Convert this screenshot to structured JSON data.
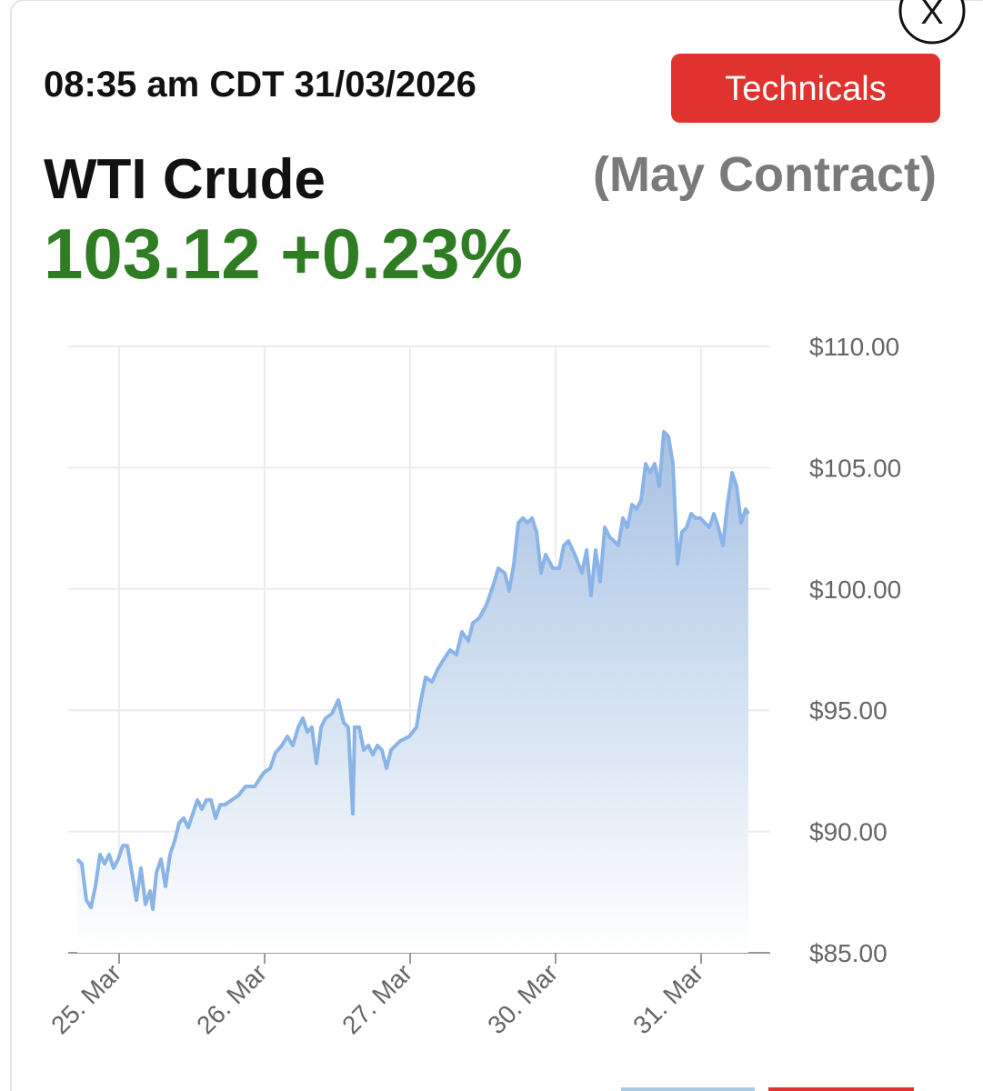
{
  "close": "X",
  "timestamp": "08:35 am CDT 31/03/2026",
  "button": "Technicals",
  "instrument": "WTI Crude",
  "contract": "(May Contract)",
  "quote": "103.12 +0.23%",
  "chart_data": {
    "type": "line",
    "x": [
      -0.288,
      -0.256,
      -0.225,
      -0.194,
      -0.163,
      -0.131,
      -0.1,
      -0.069,
      -0.038,
      -0.006,
      0.025,
      0.056,
      0.088,
      0.119,
      0.15,
      0.181,
      0.213,
      0.231,
      0.256,
      0.288,
      0.319,
      0.35,
      0.381,
      0.413,
      0.444,
      0.475,
      0.506,
      0.538,
      0.569,
      0.6,
      0.631,
      0.663,
      0.694,
      0.725,
      0.775,
      0.819,
      0.869,
      0.931,
      0.994,
      1.038,
      1.075,
      1.119,
      1.156,
      1.194,
      1.231,
      1.263,
      1.294,
      1.325,
      1.356,
      1.388,
      1.419,
      1.463,
      1.506,
      1.544,
      1.575,
      1.606,
      1.619,
      1.65,
      1.681,
      1.713,
      1.744,
      1.775,
      1.806,
      1.838,
      1.869,
      1.931,
      1.994,
      2.044,
      2.069,
      2.106,
      2.15,
      2.194,
      2.231,
      2.275,
      2.319,
      2.356,
      2.4,
      2.431,
      2.475,
      2.525,
      2.569,
      2.606,
      2.65,
      2.681,
      2.713,
      2.744,
      2.775,
      2.806,
      2.838,
      2.869,
      2.9,
      2.931,
      2.981,
      3.025,
      3.056,
      3.088,
      3.131,
      3.181,
      3.213,
      3.244,
      3.275,
      3.306,
      3.338,
      3.369,
      3.4,
      3.431,
      3.463,
      3.494,
      3.525,
      3.556,
      3.588,
      3.619,
      3.65,
      3.681,
      3.713,
      3.744,
      3.775,
      3.806,
      3.838,
      3.869,
      3.9,
      3.931,
      3.963,
      3.994,
      4.025,
      4.056,
      4.088,
      4.119,
      4.15,
      4.181,
      4.213,
      4.244,
      4.275,
      4.306,
      4.325
    ],
    "series": [
      {
        "color": "#8ab4e8",
        "values": [
          88.86,
          88.67,
          87.17,
          86.87,
          87.74,
          89.05,
          88.67,
          89.05,
          88.49,
          88.86,
          89.42,
          89.42,
          88.3,
          87.17,
          88.49,
          87.0,
          87.55,
          86.8,
          88.3,
          88.86,
          87.74,
          89.05,
          89.61,
          90.36,
          90.55,
          90.17,
          90.73,
          91.3,
          90.92,
          91.3,
          91.3,
          90.55,
          91.1,
          91.1,
          91.3,
          91.48,
          91.86,
          91.86,
          92.42,
          92.61,
          93.25,
          93.55,
          93.92,
          93.55,
          94.3,
          94.67,
          94.1,
          94.3,
          92.8,
          94.3,
          94.67,
          94.86,
          95.42,
          94.48,
          94.3,
          90.73,
          94.3,
          94.3,
          93.36,
          93.55,
          93.17,
          93.55,
          93.36,
          92.61,
          93.36,
          93.73,
          93.92,
          94.3,
          95.23,
          96.36,
          96.17,
          96.73,
          97.1,
          97.48,
          97.29,
          98.23,
          97.86,
          98.6,
          98.8,
          99.35,
          100.1,
          100.85,
          100.66,
          99.92,
          101.04,
          102.73,
          102.92,
          102.73,
          102.92,
          102.35,
          100.66,
          101.42,
          100.85,
          100.85,
          101.79,
          101.98,
          101.42,
          100.66,
          101.6,
          99.73,
          101.6,
          100.3,
          102.54,
          102.16,
          101.98,
          101.79,
          102.92,
          102.54,
          103.48,
          103.29,
          103.67,
          105.16,
          104.79,
          105.16,
          104.23,
          106.48,
          106.29,
          105.16,
          101.04,
          102.35,
          102.54,
          103.1,
          102.92,
          102.92,
          102.73,
          102.54,
          103.1,
          102.54,
          101.79,
          103.48,
          104.79,
          104.23,
          102.73,
          103.29,
          103.1
        ]
      }
    ],
    "xlim": [
      -0.35,
      4.475
    ],
    "xticks": [
      {
        "value": 0,
        "label": "25. Mar"
      },
      {
        "value": 1,
        "label": "26. Mar"
      },
      {
        "value": 2,
        "label": "27. Mar"
      },
      {
        "value": 3,
        "label": "30. Mar"
      },
      {
        "value": 4,
        "label": "31. Mar"
      }
    ],
    "ylim": [
      85,
      110
    ],
    "yticks": [
      {
        "value": 85,
        "label": "$85.00"
      },
      {
        "value": 90,
        "label": "$90.00"
      },
      {
        "value": 95,
        "label": "$95.00"
      },
      {
        "value": 100,
        "label": "$100.00"
      },
      {
        "value": 105,
        "label": "$105.00"
      },
      {
        "value": 110,
        "label": "$110.00"
      }
    ],
    "grid": true
  }
}
